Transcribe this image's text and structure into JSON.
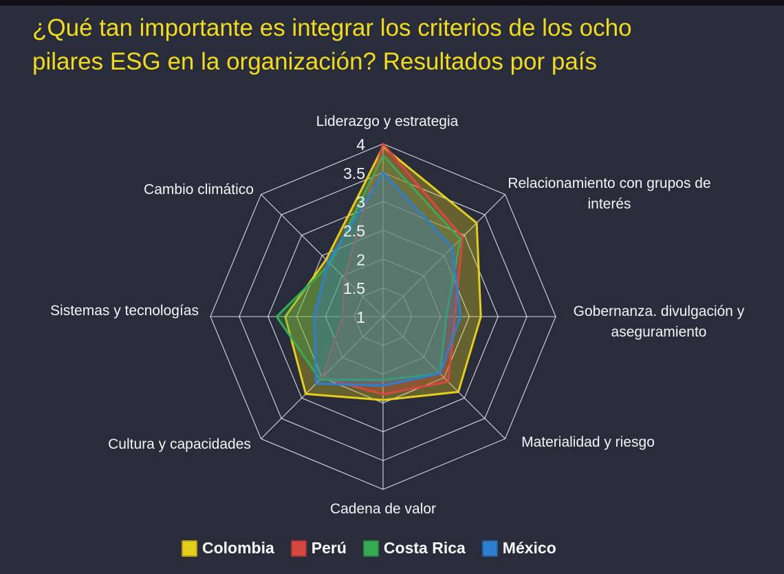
{
  "title": {
    "line1": "¿Qué tan importante es integrar los criterios de los ocho",
    "line2": "pilares ESG en la organización? Resultados por país"
  },
  "chart_data": {
    "type": "radar",
    "axes": [
      "Liderazgo y estrategia",
      "Relacionamiento con grupos de interés",
      "Gobernanza. divulgación y aseguramiento",
      "Materialidad y riesgo",
      "Cadena de valor",
      "Cultura y capacidades",
      "Sistemas y tecnologías",
      "Cambio climático"
    ],
    "scale": {
      "min": 1,
      "max": 4,
      "step": 0.5,
      "tick_labels": [
        "4",
        "3.5",
        "3",
        "2.5",
        "2",
        "1.5",
        "1"
      ]
    },
    "grid": {
      "shape": "octagon",
      "rings": [
        1.5,
        2,
        2.5,
        3,
        3.5,
        4
      ],
      "color": "#EDEEF2"
    },
    "series": [
      {
        "name": "Colombia",
        "color": "#E6CF1A",
        "values": [
          3.95,
          3.3,
          2.7,
          2.85,
          2.45,
          2.9,
          2.7,
          2.4
        ]
      },
      {
        "name": "Perú",
        "color": "#D6493F",
        "values": [
          4.0,
          2.95,
          2.25,
          2.6,
          2.35,
          2.5,
          1.7,
          1.95
        ]
      },
      {
        "name": "Costa Rica",
        "color": "#35AD55",
        "values": [
          3.8,
          2.9,
          2.1,
          2.4,
          2.1,
          2.55,
          2.85,
          2.3
        ]
      },
      {
        "name": "México",
        "color": "#2E7FD0",
        "values": [
          3.5,
          2.7,
          2.35,
          2.4,
          2.2,
          2.65,
          2.2,
          2.35
        ]
      }
    ],
    "legend_position": "bottom"
  },
  "colors": {
    "background": "#292D3B",
    "title": "#F2DC1A",
    "text": "#F3F4F7",
    "top_bar": "#0E0E14"
  }
}
